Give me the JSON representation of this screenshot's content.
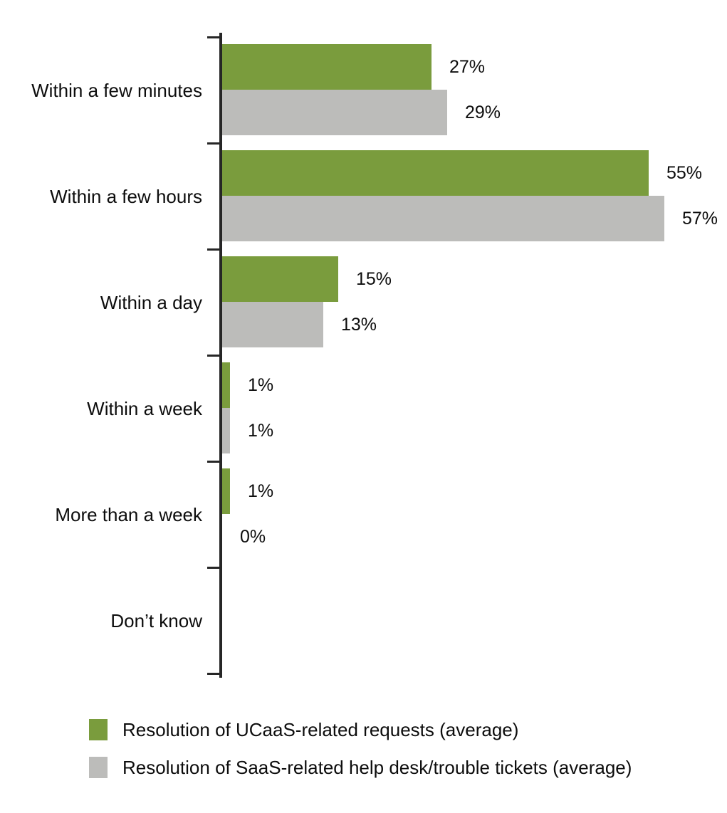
{
  "chart_data": {
    "type": "bar",
    "orientation": "horizontal",
    "title": "",
    "categories": [
      "Within a few minutes",
      "Within a few hours",
      "Within a day",
      "Within a week",
      "More than a week",
      "Don’t know"
    ],
    "series": [
      {
        "name": "Resolution of UCaaS-related requests (average)",
        "color": "#7A9C3D",
        "values": [
          27,
          55,
          15,
          1,
          1,
          null
        ],
        "labels": [
          "27%",
          "55%",
          "15%",
          "1%",
          "1%",
          ""
        ]
      },
      {
        "name": "Resolution of SaaS-related help desk/trouble tickets (average)",
        "color": "#BCBCBA",
        "values": [
          29,
          57,
          13,
          1,
          0,
          null
        ],
        "labels": [
          "29%",
          "57%",
          "13%",
          "1%",
          "0%",
          ""
        ]
      }
    ],
    "value_format": "percent",
    "x_axis": {
      "min": 0,
      "max": 60,
      "visible": false,
      "gridlines": false
    },
    "y_axis": {
      "line_color": "#262626",
      "tick_marks": "outside"
    },
    "data_label_position": "outside-end",
    "legend_position": "bottom-left",
    "background_color": "#FFFFFF",
    "text_color": "#0D0D0D"
  }
}
